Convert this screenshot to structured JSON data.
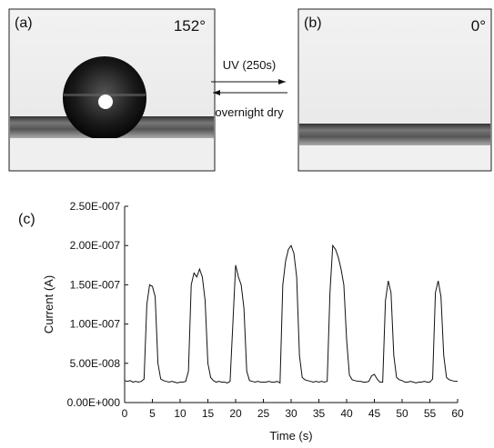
{
  "panels": {
    "a": {
      "label": "(a)",
      "angle": "152°"
    },
    "b": {
      "label": "(b)",
      "angle": "0°"
    },
    "forward": "UV (250s)",
    "backward": "overnight dry",
    "c": {
      "label": "(c)"
    }
  },
  "chart_data": {
    "type": "line",
    "x_label": "Time (s)",
    "y_label": "Current (A)",
    "color": "#111111",
    "xlim": [
      0,
      60
    ],
    "xticks": [
      0,
      5,
      10,
      15,
      20,
      25,
      30,
      35,
      40,
      45,
      50,
      55,
      60
    ],
    "ylim": [
      0,
      2.5e-07
    ],
    "yticks": [
      {
        "value": 0,
        "label": "0.00E+000"
      },
      {
        "value": 5e-08,
        "label": "5.00E-008"
      },
      {
        "value": 1e-07,
        "label": "1.00E-007"
      },
      {
        "value": 1.5e-07,
        "label": "1.50E-007"
      },
      {
        "value": 2e-07,
        "label": "2.00E-007"
      },
      {
        "value": 2.5e-07,
        "label": "2.50E-007"
      }
    ],
    "x": [
      0,
      0.5,
      1,
      1.5,
      2,
      2.5,
      3,
      3.5,
      4,
      4.5,
      5,
      5.5,
      6,
      6.5,
      7,
      7.5,
      8,
      8.5,
      9,
      9.5,
      10,
      10.5,
      11,
      11.5,
      12,
      12.5,
      13,
      13.5,
      14,
      14.5,
      15,
      15.5,
      16,
      16.5,
      17,
      17.5,
      18,
      18.5,
      19,
      19.5,
      20,
      20.5,
      21,
      21.5,
      22,
      22.5,
      23,
      23.5,
      24,
      24.5,
      25,
      25.5,
      26,
      26.5,
      27,
      27.5,
      28,
      28.5,
      29,
      29.5,
      30,
      30.5,
      31,
      31.5,
      32,
      32.5,
      33,
      33.5,
      34,
      34.5,
      35,
      35.5,
      36,
      36.5,
      37,
      37.5,
      38,
      38.5,
      39,
      39.5,
      40,
      40.5,
      41,
      41.5,
      42,
      42.5,
      43,
      43.5,
      44,
      44.5,
      45,
      45.5,
      46,
      46.5,
      47,
      47.5,
      48,
      48.5,
      49,
      49.5,
      50,
      50.5,
      51,
      51.5,
      52,
      52.5,
      53,
      53.5,
      54,
      54.5,
      55,
      55.5,
      56,
      56.5,
      57,
      57.5,
      58,
      58.5,
      59,
      59.5,
      60
    ],
    "values": [
      2.8e-08,
      2.7e-08,
      2.8e-08,
      2.6e-08,
      2.7e-08,
      2.6e-08,
      2.7e-08,
      3e-08,
      1.25e-07,
      1.5e-07,
      1.48e-07,
      1.35e-07,
      5e-08,
      3e-08,
      2.8e-08,
      2.7e-08,
      2.6e-08,
      2.7e-08,
      2.6e-08,
      2.5e-08,
      2.6e-08,
      2.6e-08,
      2.7e-08,
      4e-08,
      1.5e-07,
      1.65e-07,
      1.6e-07,
      1.7e-07,
      1.6e-07,
      1.3e-07,
      5e-08,
      3.2e-08,
      2.8e-08,
      2.6e-08,
      2.7e-08,
      2.6e-08,
      2.6e-08,
      2.5e-08,
      2.7e-08,
      1e-07,
      1.75e-07,
      1.6e-07,
      1.5e-07,
      1.2e-07,
      4e-08,
      2.8e-08,
      2.7e-08,
      2.6e-08,
      2.7e-08,
      2.6e-08,
      2.6e-08,
      2.6e-08,
      2.7e-08,
      2.6e-08,
      2.6e-08,
      2.7e-08,
      2.5e-08,
      1.5e-07,
      1.8e-07,
      1.95e-07,
      2e-07,
      1.9e-07,
      1.6e-07,
      6e-08,
      3.2e-08,
      2.9e-08,
      2.8e-08,
      2.7e-08,
      2.6e-08,
      2.7e-08,
      2.6e-08,
      2.7e-08,
      2.6e-08,
      2.7e-08,
      1.4e-07,
      2e-07,
      1.95e-07,
      1.85e-07,
      1.7e-07,
      1.5e-07,
      8e-08,
      3.5e-08,
      2.9e-08,
      2.8e-08,
      2.7e-08,
      2.7e-08,
      2.6e-08,
      2.6e-08,
      2.7e-08,
      3.4e-08,
      3.6e-08,
      3e-08,
      2.6e-08,
      2.6e-08,
      1.3e-07,
      1.55e-07,
      1.4e-07,
      6e-08,
      3.2e-08,
      2.9e-08,
      2.8e-08,
      2.6e-08,
      2.6e-08,
      2.7e-08,
      2.6e-08,
      2.5e-08,
      2.6e-08,
      2.6e-08,
      2.7e-08,
      2.6e-08,
      2.6e-08,
      3e-08,
      1.4e-07,
      1.55e-07,
      1.35e-07,
      6e-08,
      3.2e-08,
      2.9e-08,
      2.8e-08,
      2.7e-08,
      2.7e-08
    ]
  }
}
